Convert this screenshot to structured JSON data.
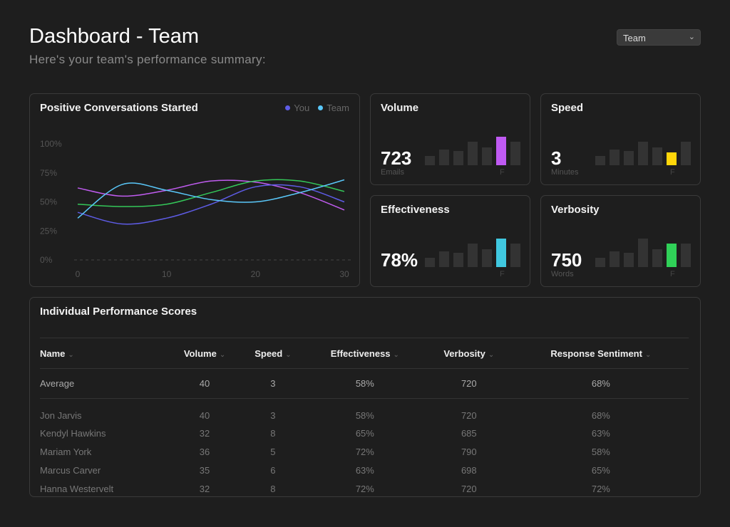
{
  "header": {
    "title": "Dashboard - Team",
    "subtitle": "Here's your team's performance summary:"
  },
  "team_select": {
    "value": "Team"
  },
  "chart_data": {
    "type": "line",
    "title": "Positive Conversations Started",
    "legend": [
      {
        "name": "You",
        "color": "#5e5ce6"
      },
      {
        "name": "Team",
        "color": "#5ac8fa"
      }
    ],
    "legend_placement": "top-right",
    "xlim": [
      0,
      30
    ],
    "ylim": [
      0,
      100
    ],
    "x_ticks": [
      "0",
      "10",
      "20",
      "30"
    ],
    "y_ticks": [
      "100%",
      "75%",
      "50%",
      "25%",
      "0%"
    ],
    "x": [
      0,
      5,
      10,
      15,
      20,
      25,
      30
    ],
    "series": [
      {
        "color": "#c05cf0",
        "values": [
          62,
          55,
          60,
          68,
          67,
          58,
          43
        ]
      },
      {
        "color": "#5e5ce6",
        "values": [
          41,
          31,
          36,
          48,
          63,
          63,
          50
        ]
      },
      {
        "color": "#34c759",
        "values": [
          48,
          46,
          48,
          58,
          68,
          68,
          59
        ]
      },
      {
        "color": "#5ac8fa",
        "values": [
          36,
          65,
          60,
          52,
          50,
          58,
          69
        ]
      }
    ]
  },
  "metrics": [
    {
      "title": "Volume",
      "value": "723",
      "unit": "Emails",
      "flabel": "F",
      "color": "#bf5af2",
      "bars": [
        13,
        22,
        20,
        33,
        25,
        40,
        33
      ],
      "highlight": 5
    },
    {
      "title": "Speed",
      "value": "3",
      "unit": "Minutes",
      "flabel": "F",
      "color": "#ffd60a",
      "bars": [
        13,
        22,
        20,
        33,
        25,
        18,
        33
      ],
      "highlight": 5
    },
    {
      "title": "Effectiveness",
      "value": "78%",
      "unit": "",
      "flabel": "F",
      "color": "#40c8e0",
      "bars": [
        13,
        22,
        20,
        33,
        25,
        40,
        33
      ],
      "highlight": 5
    },
    {
      "title": "Verbosity",
      "value": "750",
      "unit": "Words",
      "flabel": "F",
      "color": "#30d158",
      "bars": [
        13,
        22,
        20,
        40,
        25,
        33,
        33
      ],
      "highlight": 5
    }
  ],
  "table": {
    "title": "Individual Performance Scores",
    "columns": [
      "Name",
      "Volume",
      "Speed",
      "Effectiveness",
      "Verbosity",
      "Response Sentiment"
    ],
    "average": [
      "Average",
      "40",
      "3",
      "58%",
      "720",
      "68%"
    ],
    "rows": [
      [
        "Jon Jarvis",
        "40",
        "3",
        "58%",
        "720",
        "68%"
      ],
      [
        "Kendyl Hawkins",
        "32",
        "8",
        "65%",
        "685",
        "63%"
      ],
      [
        "Mariam York",
        "36",
        "5",
        "72%",
        "790",
        "58%"
      ],
      [
        "Marcus Carver",
        "35",
        "6",
        "63%",
        "698",
        "65%"
      ],
      [
        "Hanna Westervelt",
        "32",
        "8",
        "72%",
        "720",
        "72%"
      ]
    ]
  }
}
